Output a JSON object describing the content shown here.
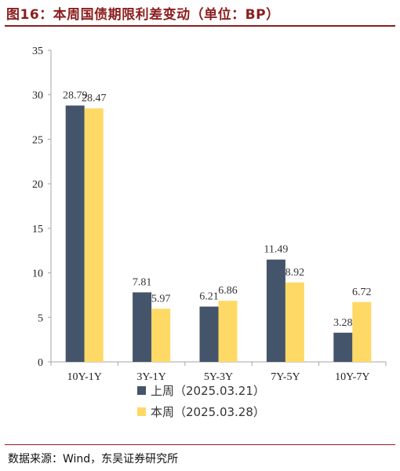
{
  "figure": {
    "title": "图16：本周国债期限利差变动（单位：BP）",
    "source": "数据来源：Wind，东吴证券研究所"
  },
  "colors": {
    "prev_week": "#44546a",
    "this_week": "#ffd966",
    "rule": "#8b1e1e"
  },
  "chart_data": {
    "type": "bar",
    "title": "本周国债期限利差变动（单位：BP）",
    "categories": [
      "10Y-1Y",
      "3Y-1Y",
      "5Y-3Y",
      "7Y-5Y",
      "10Y-7Y"
    ],
    "series": [
      {
        "name": "上周（2025.03.21）",
        "values": [
          28.79,
          7.81,
          6.21,
          11.49,
          3.28
        ]
      },
      {
        "name": "本周（2025.03.28）",
        "values": [
          28.47,
          5.97,
          6.86,
          8.92,
          6.72
        ]
      }
    ],
    "ylim": [
      0,
      35
    ],
    "yticks": [
      0,
      5,
      10,
      15,
      20,
      25,
      30,
      35
    ],
    "xlabel": "",
    "ylabel": "",
    "legend": "bottom",
    "grid": false
  }
}
